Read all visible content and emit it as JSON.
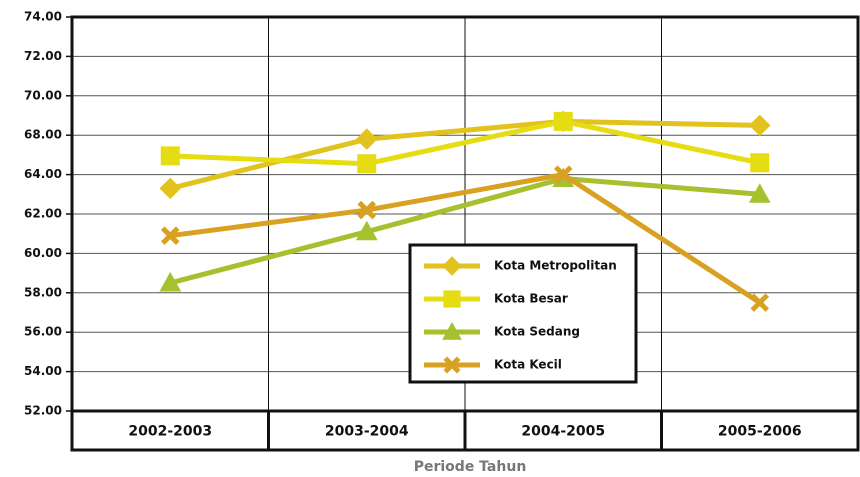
{
  "chart_data": {
    "type": "line",
    "x_label": "Periode Tahun",
    "categories": [
      "2002-2003",
      "2003-2004",
      "2004-2005",
      "2005-2006"
    ],
    "series": [
      {
        "name": "Kota Metropolitan",
        "color": "#e2c21c",
        "marker": "diamond",
        "values": [
          63.3,
          67.6,
          68.7,
          68.5
        ]
      },
      {
        "name": "Kota Besar",
        "color": "#e6dc12",
        "marker": "square",
        "values": [
          65.9,
          65.1,
          68.7,
          65.2
        ]
      },
      {
        "name": "Kota Sedang",
        "color": "#a6c12e",
        "marker": "triangle",
        "values": [
          58.5,
          61.1,
          63.8,
          63.0
        ]
      },
      {
        "name": "Kota Kecil",
        "color": "#d9a122",
        "marker": "x",
        "values": [
          60.9,
          62.2,
          64.0,
          57.5
        ]
      }
    ],
    "ylim": [
      52,
      74
    ],
    "yticks": [
      {
        "value": 74,
        "label": "74.00"
      },
      {
        "value": 72,
        "label": "72.00"
      },
      {
        "value": 70,
        "label": "70.00"
      },
      {
        "value": 68,
        "label": "68.00"
      },
      {
        "value": 64,
        "label": "64.00"
      },
      {
        "value": 62,
        "label": "62.00"
      },
      {
        "value": 60,
        "label": "60.00"
      },
      {
        "value": 58,
        "label": "58.00"
      },
      {
        "value": 56,
        "label": "56.00"
      },
      {
        "value": 54,
        "label": "54.00"
      },
      {
        "value": 52,
        "label": "52.00"
      }
    ],
    "grid": true,
    "legend": "lower right"
  }
}
